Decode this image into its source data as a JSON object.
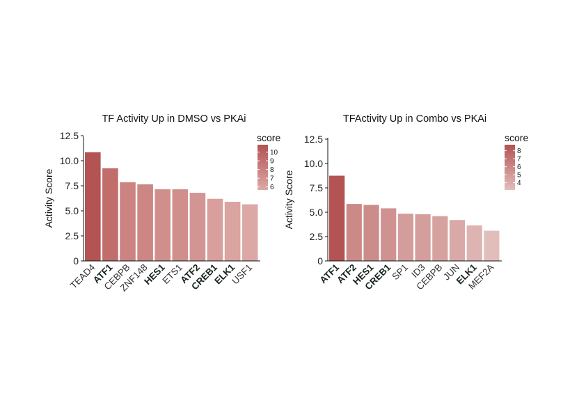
{
  "chart_data": [
    {
      "type": "bar",
      "title": "TF Activity Up in DMSO vs PKAi",
      "ylabel": "Activity Score",
      "xlabel": "",
      "ylim": [
        0,
        12.5
      ],
      "yticks": [
        "0",
        "2.5",
        "5.0",
        "7.5",
        "10.0",
        "12.5"
      ],
      "categories": [
        "TEAD4",
        "ATF1",
        "CEBPB",
        "ZNF148",
        "HES1",
        "ETS1",
        "ATF2",
        "CREB1",
        "ELK1",
        "USF1"
      ],
      "bold": [
        false,
        true,
        false,
        false,
        true,
        false,
        true,
        true,
        true,
        false
      ],
      "values": [
        10.85,
        9.25,
        7.85,
        7.65,
        7.15,
        7.15,
        6.8,
        6.2,
        5.9,
        5.65
      ],
      "legend": {
        "title": "score",
        "ticks": [
          "10",
          "9",
          "8",
          "7",
          "6"
        ],
        "range": [
          5.65,
          10.85
        ],
        "position": "top-right",
        "color_low": "#dca8a5",
        "color_high": "#b35353"
      },
      "grid": false
    },
    {
      "type": "bar",
      "title": "TFActivity Up in Combo vs PKAi",
      "ylabel": "Activity Score",
      "xlabel": "",
      "ylim": [
        0,
        12.5
      ],
      "yticks": [
        "0",
        "2.5",
        "5.0",
        "7.5",
        "10.0",
        "12.5"
      ],
      "categories": [
        "ATF1",
        "ATF2",
        "HES1",
        "CREB1",
        "SP1",
        "ID3",
        "CEBPB",
        "JUN",
        "ELK1",
        "MEF2A"
      ],
      "bold": [
        true,
        true,
        true,
        true,
        false,
        false,
        false,
        false,
        true,
        false
      ],
      "values": [
        8.75,
        5.85,
        5.75,
        5.4,
        4.85,
        4.8,
        4.6,
        4.2,
        3.65,
        3.1
      ],
      "legend": {
        "title": "score",
        "ticks": [
          "8",
          "7",
          "6",
          "5",
          "4"
        ],
        "range": [
          3.1,
          8.75
        ],
        "position": "top-right",
        "color_low": "#e2bebb",
        "color_high": "#b35353"
      },
      "grid": false
    }
  ]
}
